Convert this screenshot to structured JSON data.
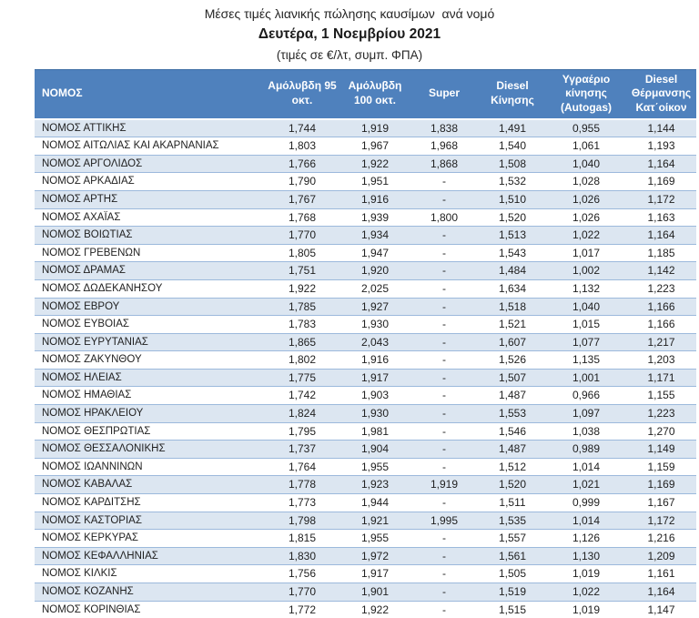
{
  "title": {
    "line1": "Μέσες τιμές λιανικής πώλησης καυσίμων  ανά νομό",
    "line2": "Δευτέρα, 1 Νοεμβρίου 2021",
    "line3": "(τιμές σε €/λτ, συμπ. ΦΠΑ)"
  },
  "colors": {
    "header_bg": "#4f81bd",
    "header_text": "#ffffff",
    "stripe_bg": "#dce6f1",
    "row_border": "#9cb9dc",
    "body_text": "#1f1f1f"
  },
  "table": {
    "columns": [
      "ΝΟΜΟΣ",
      "Αμόλυβδη 95 οκτ.",
      "Αμόλυβδη 100 οκτ.",
      "Super",
      "Diesel Κίνησης",
      "Υγραέριο κίνησης (Autogas)",
      "Diesel Θέρμανσης Κατ΄οίκον"
    ],
    "rows": [
      {
        "name": "ΝΟΜΟΣ ΑΤΤΙΚΗΣ",
        "values": [
          "1,744",
          "1,919",
          "1,838",
          "1,491",
          "0,955",
          "1,144"
        ]
      },
      {
        "name": "ΝΟΜΟΣ ΑΙΤΩΛΙΑΣ ΚΑΙ ΑΚΑΡΝΑΝΙΑΣ",
        "values": [
          "1,803",
          "1,967",
          "1,968",
          "1,540",
          "1,061",
          "1,193"
        ]
      },
      {
        "name": "ΝΟΜΟΣ ΑΡΓΟΛΙΔΟΣ",
        "values": [
          "1,766",
          "1,922",
          "1,868",
          "1,508",
          "1,040",
          "1,164"
        ]
      },
      {
        "name": "ΝΟΜΟΣ ΑΡΚΑΔΙΑΣ",
        "values": [
          "1,790",
          "1,951",
          "-",
          "1,532",
          "1,028",
          "1,169"
        ]
      },
      {
        "name": "ΝΟΜΟΣ ΑΡΤΗΣ",
        "values": [
          "1,767",
          "1,916",
          "-",
          "1,510",
          "1,026",
          "1,172"
        ]
      },
      {
        "name": "ΝΟΜΟΣ ΑΧΑΪΑΣ",
        "values": [
          "1,768",
          "1,939",
          "1,800",
          "1,520",
          "1,026",
          "1,163"
        ]
      },
      {
        "name": "ΝΟΜΟΣ ΒΟΙΩΤΙΑΣ",
        "values": [
          "1,770",
          "1,934",
          "-",
          "1,513",
          "1,022",
          "1,164"
        ]
      },
      {
        "name": "ΝΟΜΟΣ ΓΡΕΒΕΝΩΝ",
        "values": [
          "1,805",
          "1,947",
          "-",
          "1,543",
          "1,017",
          "1,185"
        ]
      },
      {
        "name": "ΝΟΜΟΣ ΔΡΑΜΑΣ",
        "values": [
          "1,751",
          "1,920",
          "-",
          "1,484",
          "1,002",
          "1,142"
        ]
      },
      {
        "name": "ΝΟΜΟΣ ΔΩΔΕΚΑΝΗΣΟΥ",
        "values": [
          "1,922",
          "2,025",
          "-",
          "1,634",
          "1,132",
          "1,223"
        ]
      },
      {
        "name": "ΝΟΜΟΣ ΕΒΡΟΥ",
        "values": [
          "1,785",
          "1,927",
          "-",
          "1,518",
          "1,040",
          "1,166"
        ]
      },
      {
        "name": "ΝΟΜΟΣ ΕΥΒΟΙΑΣ",
        "values": [
          "1,783",
          "1,930",
          "-",
          "1,521",
          "1,015",
          "1,166"
        ]
      },
      {
        "name": "ΝΟΜΟΣ ΕΥΡΥΤΑΝΙΑΣ",
        "values": [
          "1,865",
          "2,043",
          "-",
          "1,607",
          "1,077",
          "1,217"
        ]
      },
      {
        "name": "ΝΟΜΟΣ ΖΑΚΥΝΘΟΥ",
        "values": [
          "1,802",
          "1,916",
          "-",
          "1,526",
          "1,135",
          "1,203"
        ]
      },
      {
        "name": "ΝΟΜΟΣ ΗΛΕΙΑΣ",
        "values": [
          "1,775",
          "1,917",
          "-",
          "1,507",
          "1,001",
          "1,171"
        ]
      },
      {
        "name": "ΝΟΜΟΣ ΗΜΑΘΙΑΣ",
        "values": [
          "1,742",
          "1,903",
          "-",
          "1,487",
          "0,966",
          "1,155"
        ]
      },
      {
        "name": "ΝΟΜΟΣ ΗΡΑΚΛΕΙΟΥ",
        "values": [
          "1,824",
          "1,930",
          "-",
          "1,553",
          "1,097",
          "1,223"
        ]
      },
      {
        "name": "ΝΟΜΟΣ ΘΕΣΠΡΩΤΙΑΣ",
        "values": [
          "1,795",
          "1,981",
          "-",
          "1,546",
          "1,038",
          "1,270"
        ]
      },
      {
        "name": "ΝΟΜΟΣ ΘΕΣΣΑΛΟΝΙΚΗΣ",
        "values": [
          "1,737",
          "1,904",
          "-",
          "1,487",
          "0,989",
          "1,149"
        ]
      },
      {
        "name": "ΝΟΜΟΣ ΙΩΑΝΝΙΝΩΝ",
        "values": [
          "1,764",
          "1,955",
          "-",
          "1,512",
          "1,014",
          "1,159"
        ]
      },
      {
        "name": "ΝΟΜΟΣ ΚΑΒΑΛΑΣ",
        "values": [
          "1,778",
          "1,923",
          "1,919",
          "1,520",
          "1,021",
          "1,169"
        ]
      },
      {
        "name": "ΝΟΜΟΣ ΚΑΡΔΙΤΣΗΣ",
        "values": [
          "1,773",
          "1,944",
          "-",
          "1,511",
          "0,999",
          "1,167"
        ]
      },
      {
        "name": "ΝΟΜΟΣ ΚΑΣΤΟΡΙΑΣ",
        "values": [
          "1,798",
          "1,921",
          "1,995",
          "1,535",
          "1,014",
          "1,172"
        ]
      },
      {
        "name": "ΝΟΜΟΣ ΚΕΡΚΥΡΑΣ",
        "values": [
          "1,815",
          "1,955",
          "-",
          "1,557",
          "1,126",
          "1,216"
        ]
      },
      {
        "name": "ΝΟΜΟΣ ΚΕΦΑΛΛΗΝΙΑΣ",
        "values": [
          "1,830",
          "1,972",
          "-",
          "1,561",
          "1,130",
          "1,209"
        ]
      },
      {
        "name": "ΝΟΜΟΣ ΚΙΛΚΙΣ",
        "values": [
          "1,756",
          "1,917",
          "-",
          "1,505",
          "1,019",
          "1,161"
        ]
      },
      {
        "name": "ΝΟΜΟΣ ΚΟΖΑΝΗΣ",
        "values": [
          "1,770",
          "1,901",
          "-",
          "1,519",
          "1,022",
          "1,164"
        ]
      },
      {
        "name": "ΝΟΜΟΣ ΚΟΡΙΝΘΙΑΣ",
        "values": [
          "1,772",
          "1,922",
          "-",
          "1,515",
          "1,019",
          "1,147"
        ]
      }
    ]
  }
}
